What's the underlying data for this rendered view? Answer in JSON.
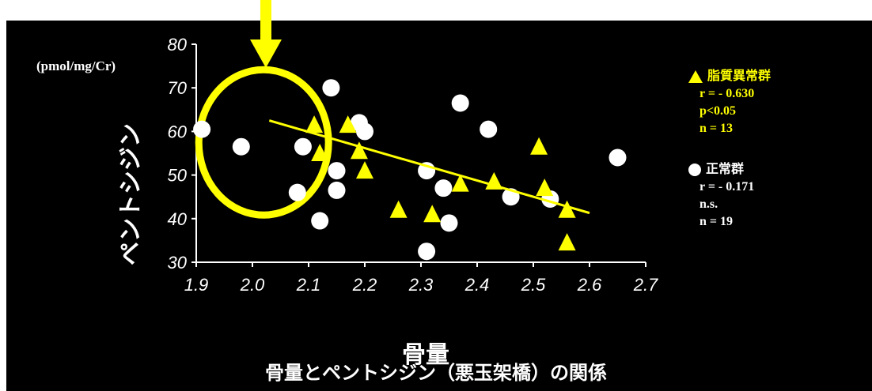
{
  "chart_data": {
    "type": "scatter",
    "title": "骨量とペントシジン（悪玉架橋）の関係",
    "xlabel": "骨量",
    "ylabel": "ペントシジン",
    "yunit": "(pmol/mg/Cr)",
    "xlim": [
      1.9,
      2.7
    ],
    "ylim": [
      30,
      80
    ],
    "xticks": [
      "1.9",
      "2.0",
      "2.1",
      "2.2",
      "2.3",
      "2.4",
      "2.5",
      "2.6",
      "2.7"
    ],
    "yticks": [
      "30",
      "40",
      "50",
      "60",
      "70",
      "80"
    ],
    "series": [
      {
        "name": "脂質異常群",
        "marker": "triangle",
        "color": "#ffff00",
        "stats": [
          "r = - 0.630",
          "p<0.05",
          "n = 13"
        ],
        "points": [
          [
            2.11,
            61.5
          ],
          [
            2.12,
            55.0
          ],
          [
            2.17,
            61.5
          ],
          [
            2.19,
            55.5
          ],
          [
            2.2,
            51.0
          ],
          [
            2.26,
            42.0
          ],
          [
            2.32,
            41.0
          ],
          [
            2.37,
            48.0
          ],
          [
            2.43,
            48.5
          ],
          [
            2.51,
            56.5
          ],
          [
            2.52,
            47.0
          ],
          [
            2.56,
            42.0
          ],
          [
            2.56,
            34.5
          ]
        ],
        "trendline": [
          [
            2.03,
            62.5
          ],
          [
            2.6,
            41.3
          ]
        ]
      },
      {
        "name": "正常群",
        "marker": "circle",
        "color": "#ffffff",
        "stats": [
          "r = - 0.171",
          "n.s.",
          "n = 19"
        ],
        "points": [
          [
            1.91,
            60.5
          ],
          [
            1.98,
            56.5
          ],
          [
            2.09,
            56.5
          ],
          [
            2.08,
            46.0
          ],
          [
            2.12,
            39.5
          ],
          [
            2.14,
            70.0
          ],
          [
            2.15,
            51.0
          ],
          [
            2.15,
            46.5
          ],
          [
            2.19,
            62.0
          ],
          [
            2.2,
            60.0
          ],
          [
            2.31,
            51.0
          ],
          [
            2.31,
            32.5
          ],
          [
            2.34,
            47.0
          ],
          [
            2.35,
            39.0
          ],
          [
            2.37,
            66.5
          ],
          [
            2.42,
            60.5
          ],
          [
            2.46,
            45.0
          ],
          [
            2.53,
            44.5
          ],
          [
            2.65,
            54.0
          ]
        ]
      }
    ],
    "grid": false,
    "legend": "right",
    "annotations": [
      "yellow-circle-highlight",
      "yellow-arrow"
    ]
  }
}
